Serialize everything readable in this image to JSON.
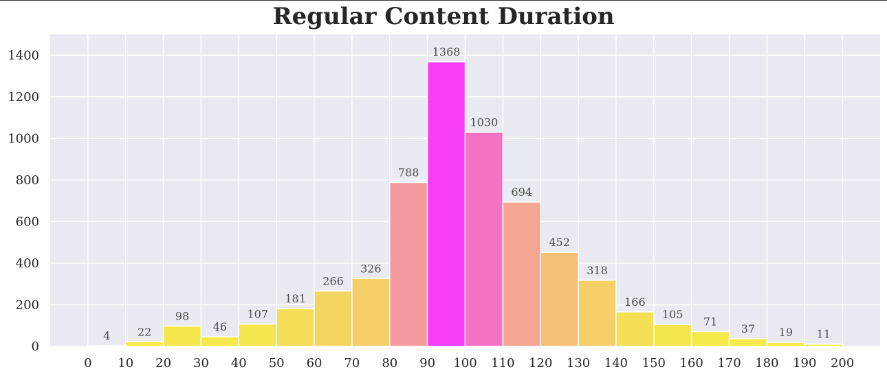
{
  "title": "Regular Content Duration",
  "chart_data": {
    "type": "bar",
    "title": "Regular Content Duration",
    "xlabel": "",
    "ylabel": "",
    "bin_edges": [
      0,
      10,
      20,
      30,
      40,
      50,
      60,
      70,
      80,
      90,
      100,
      110,
      120,
      130,
      140,
      150,
      160,
      170,
      180,
      190,
      200
    ],
    "values": [
      4,
      22,
      98,
      46,
      107,
      181,
      266,
      326,
      788,
      1368,
      1030,
      694,
      452,
      318,
      166,
      105,
      71,
      37,
      19,
      11
    ],
    "xticks": [
      0,
      10,
      20,
      30,
      40,
      50,
      60,
      70,
      80,
      90,
      100,
      110,
      120,
      130,
      140,
      150,
      160,
      170,
      180,
      190,
      200
    ],
    "yticks": [
      0,
      200,
      400,
      600,
      800,
      1000,
      1200,
      1400
    ],
    "xlim": [
      -10,
      210
    ],
    "ylim": [
      0,
      1500
    ],
    "grid": true,
    "colors": {
      "background": "#eaeaf2",
      "grid": "#ffffff",
      "low": "#f5ea4a",
      "mid": "#f4a09a",
      "high": "#f73cf5"
    }
  }
}
